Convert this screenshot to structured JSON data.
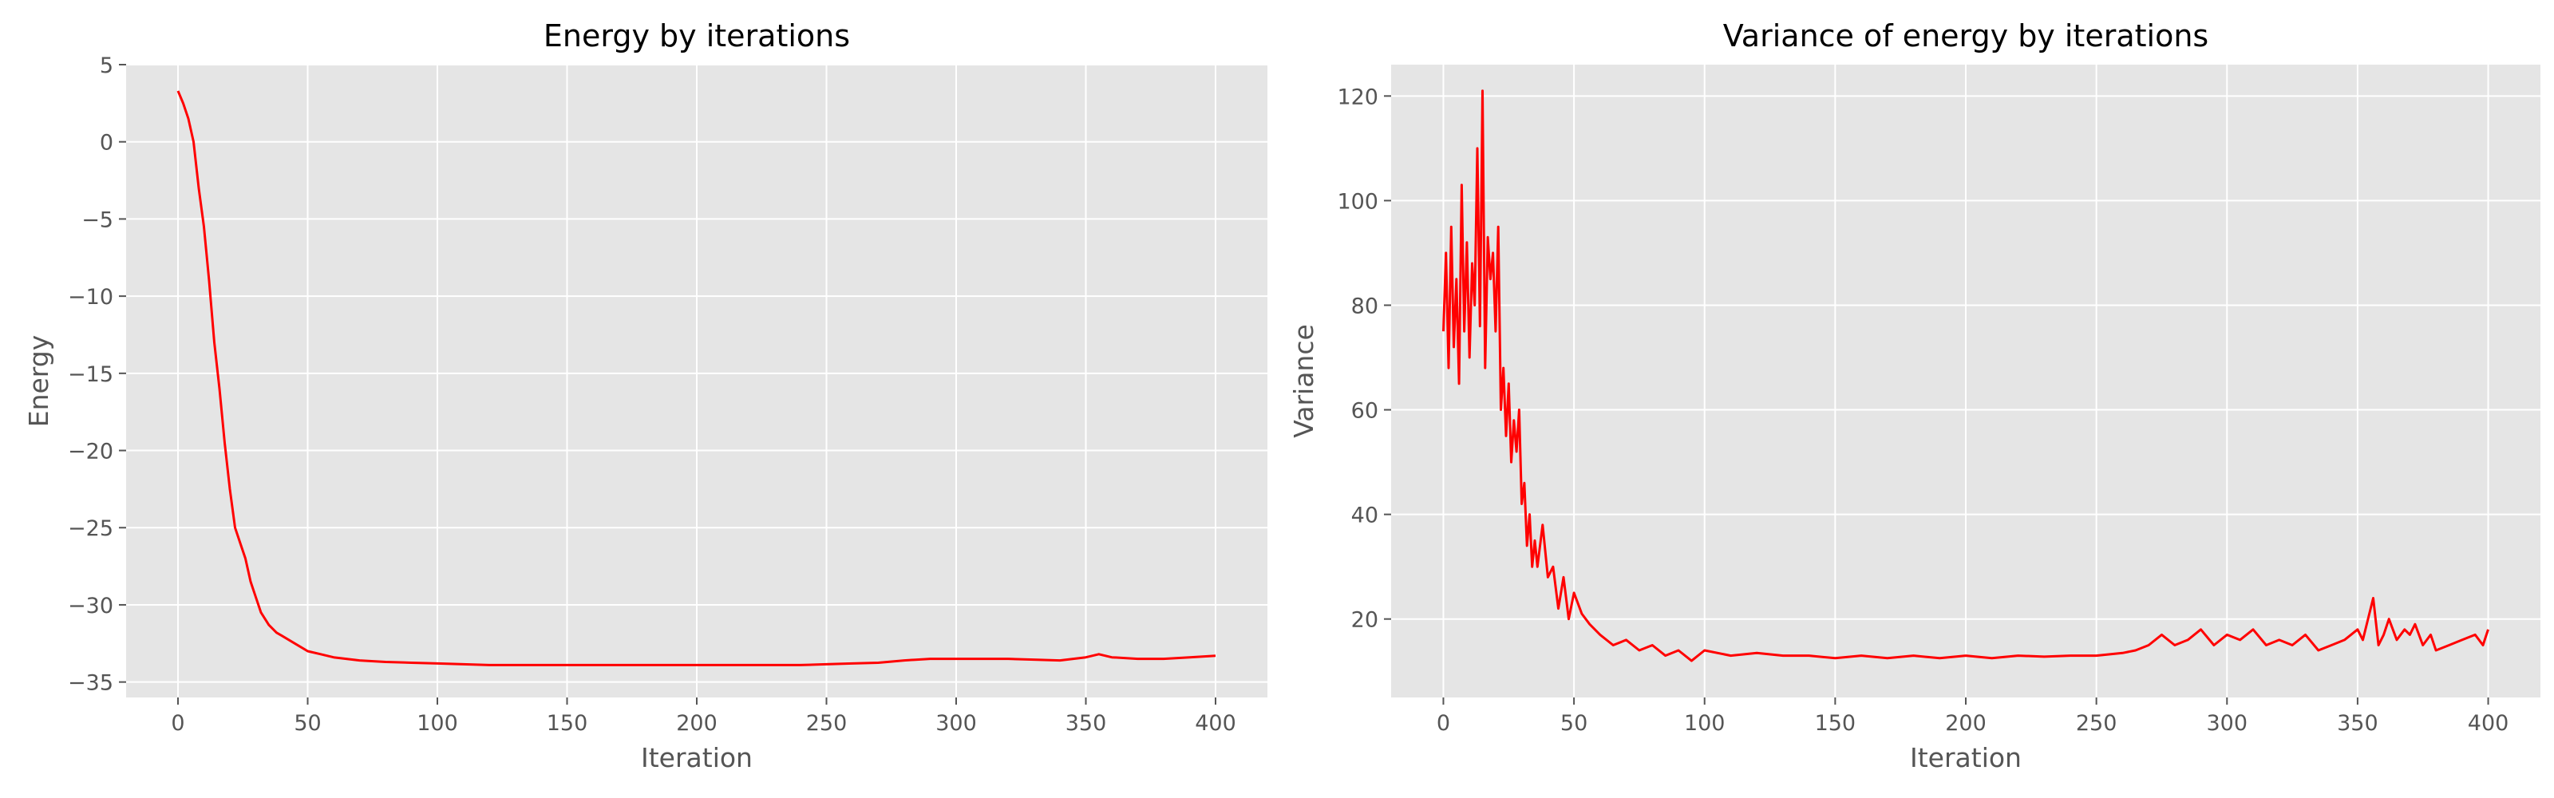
{
  "figure": {
    "background": "#ffffff",
    "axes_background": "#e5e5e5",
    "grid_color": "#ffffff",
    "line_color": "#ff0000"
  },
  "chart_data": [
    {
      "type": "line",
      "title": "Energy by iterations",
      "xlabel": "Iteration",
      "ylabel": "Energy",
      "grid": true,
      "xlim": [
        -20,
        420
      ],
      "ylim": [
        -36,
        5
      ],
      "xticks": [
        0,
        50,
        100,
        150,
        200,
        250,
        300,
        350,
        400
      ],
      "xtick_labels": [
        "0",
        "50",
        "100",
        "150",
        "200",
        "250",
        "300",
        "350",
        "400"
      ],
      "yticks": [
        5,
        0,
        -5,
        -10,
        -15,
        -20,
        -25,
        -30,
        -35
      ],
      "ytick_labels": [
        "5",
        "0",
        "−5",
        "−10",
        "−15",
        "−20",
        "−25",
        "−30",
        "−35"
      ],
      "series": [
        {
          "color": "#ff0000",
          "x": [
            0,
            2,
            4,
            6,
            8,
            10,
            12,
            14,
            16,
            18,
            20,
            22,
            24,
            26,
            28,
            30,
            32,
            35,
            38,
            40,
            45,
            50,
            55,
            60,
            70,
            80,
            90,
            100,
            110,
            120,
            130,
            140,
            150,
            160,
            170,
            180,
            190,
            200,
            210,
            220,
            230,
            240,
            250,
            260,
            270,
            280,
            290,
            300,
            310,
            320,
            330,
            340,
            350,
            355,
            360,
            370,
            380,
            390,
            400
          ],
          "y": [
            3.3,
            2.5,
            1.5,
            0,
            -3,
            -5.5,
            -9,
            -13,
            -16,
            -19.5,
            -22.5,
            -25,
            -26,
            -27,
            -28.5,
            -29.5,
            -30.5,
            -31.3,
            -31.8,
            -32,
            -32.5,
            -33,
            -33.2,
            -33.4,
            -33.6,
            -33.7,
            -33.75,
            -33.8,
            -33.85,
            -33.9,
            -33.9,
            -33.9,
            -33.9,
            -33.9,
            -33.9,
            -33.9,
            -33.9,
            -33.9,
            -33.9,
            -33.9,
            -33.9,
            -33.9,
            -33.85,
            -33.8,
            -33.75,
            -33.6,
            -33.5,
            -33.5,
            -33.5,
            -33.5,
            -33.55,
            -33.6,
            -33.4,
            -33.2,
            -33.4,
            -33.5,
            -33.5,
            -33.4,
            -33.3
          ]
        }
      ]
    },
    {
      "type": "line",
      "title": "Variance of energy by iterations",
      "xlabel": "Iteration",
      "ylabel": "Variance",
      "grid": true,
      "xlim": [
        -20,
        420
      ],
      "ylim": [
        5,
        126
      ],
      "xticks": [
        0,
        50,
        100,
        150,
        200,
        250,
        300,
        350,
        400
      ],
      "xtick_labels": [
        "0",
        "50",
        "100",
        "150",
        "200",
        "250",
        "300",
        "350",
        "400"
      ],
      "yticks": [
        120,
        100,
        80,
        60,
        40,
        20
      ],
      "ytick_labels": [
        "120",
        "100",
        "80",
        "60",
        "40",
        "20"
      ],
      "series": [
        {
          "color": "#ff0000",
          "x": [
            0,
            1,
            2,
            3,
            4,
            5,
            6,
            7,
            8,
            9,
            10,
            11,
            12,
            13,
            14,
            15,
            16,
            17,
            18,
            19,
            20,
            21,
            22,
            23,
            24,
            25,
            26,
            27,
            28,
            29,
            30,
            31,
            32,
            33,
            34,
            35,
            36,
            38,
            40,
            42,
            44,
            46,
            48,
            50,
            53,
            56,
            60,
            65,
            70,
            75,
            80,
            85,
            90,
            95,
            100,
            110,
            120,
            130,
            140,
            150,
            160,
            170,
            180,
            190,
            200,
            210,
            220,
            230,
            240,
            250,
            260,
            265,
            270,
            275,
            280,
            285,
            290,
            295,
            300,
            305,
            310,
            315,
            320,
            325,
            330,
            335,
            340,
            345,
            350,
            352,
            354,
            356,
            358,
            360,
            362,
            365,
            368,
            370,
            372,
            375,
            378,
            380,
            385,
            390,
            395,
            398,
            400
          ],
          "y": [
            75,
            90,
            68,
            95,
            72,
            85,
            65,
            103,
            75,
            92,
            70,
            88,
            80,
            110,
            76,
            121,
            68,
            93,
            85,
            90,
            75,
            95,
            60,
            68,
            55,
            65,
            50,
            58,
            52,
            60,
            42,
            46,
            34,
            40,
            30,
            35,
            30,
            38,
            28,
            30,
            22,
            28,
            20,
            25,
            21,
            19,
            17,
            15,
            16,
            14,
            15,
            13,
            14,
            12,
            14,
            13,
            13.5,
            13,
            13,
            12.5,
            13,
            12.5,
            13,
            12.5,
            13,
            12.5,
            13,
            12.8,
            13,
            13,
            13.5,
            14,
            15,
            17,
            15,
            16,
            18,
            15,
            17,
            16,
            18,
            15,
            16,
            15,
            17,
            14,
            15,
            16,
            18,
            16,
            20,
            24,
            15,
            17,
            20,
            16,
            18,
            17,
            19,
            15,
            17,
            14,
            15,
            16,
            17,
            15,
            18
          ]
        }
      ]
    }
  ]
}
